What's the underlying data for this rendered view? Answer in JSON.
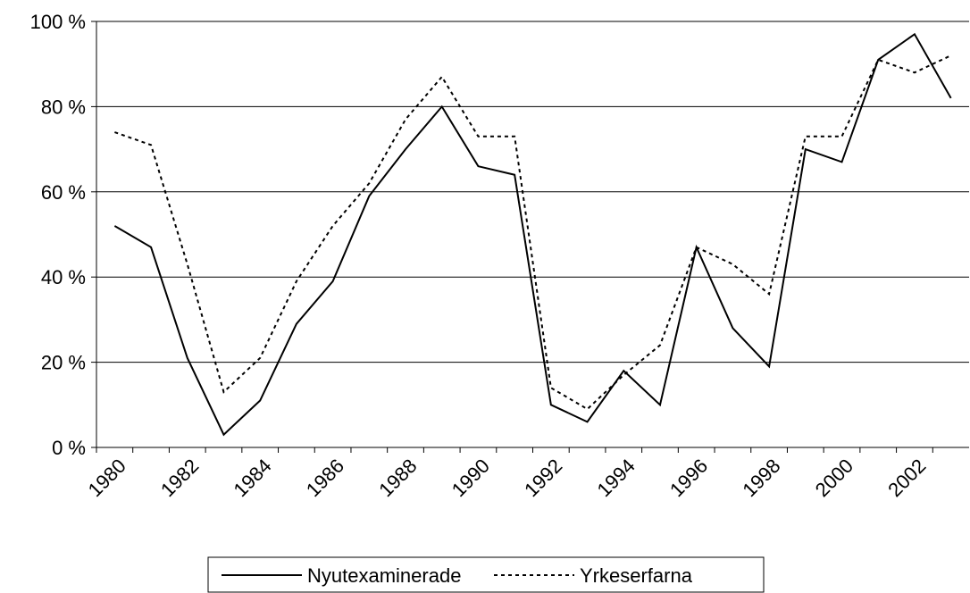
{
  "chart_data": {
    "type": "line",
    "categories": [
      "1980",
      null,
      "1982",
      null,
      "1984",
      null,
      "1986",
      null,
      "1988",
      null,
      "1990",
      null,
      "1992",
      null,
      "1994",
      null,
      "1996",
      null,
      "1998",
      null,
      "2000",
      null,
      "2002",
      null
    ],
    "series": [
      {
        "name": "Nyutexaminerade",
        "color": "#000000",
        "dash": "solid",
        "values": [
          52,
          47,
          21,
          3,
          11,
          29,
          39,
          59,
          70,
          80,
          66,
          64,
          10,
          6,
          18,
          10,
          47,
          28,
          19,
          70,
          67,
          91,
          97,
          82
        ]
      },
      {
        "name": "Yrkeserfarna",
        "color": "#000000",
        "dash": "dotted",
        "values": [
          74,
          71,
          43,
          13,
          21,
          39,
          52,
          62,
          77,
          87,
          73,
          73,
          14,
          9,
          17,
          24,
          47,
          43,
          36,
          73,
          73,
          91,
          88,
          92
        ]
      }
    ],
    "ylim": [
      0,
      100
    ],
    "yticks": [
      {
        "value": 0,
        "label": "0 %"
      },
      {
        "value": 20,
        "label": "20 %"
      },
      {
        "value": 40,
        "label": "40 %"
      },
      {
        "value": 60,
        "label": "60 %"
      },
      {
        "value": 80,
        "label": "80 %"
      },
      {
        "value": 100,
        "label": "100 %"
      }
    ],
    "grid": true,
    "legend": "bottom"
  }
}
